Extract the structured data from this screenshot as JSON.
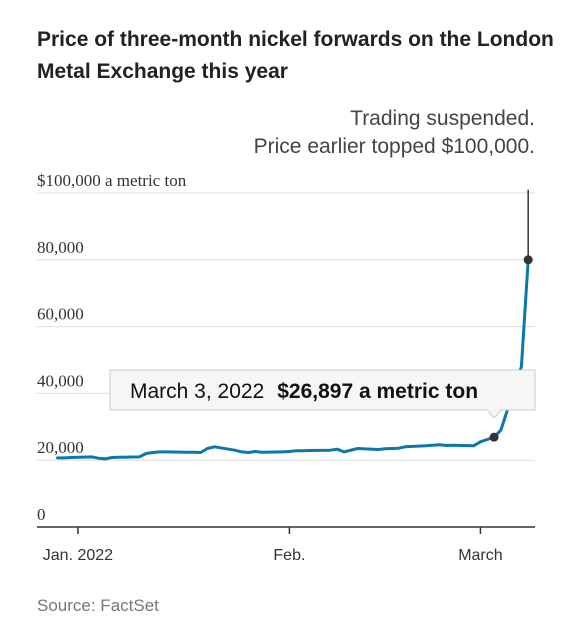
{
  "chart_data": {
    "type": "line",
    "title": "Price of three-month nickel forwards on the London Metal Exchange this year",
    "source": "Source: FactSet",
    "y_ticks": [
      {
        "value": 0,
        "label": "0"
      },
      {
        "value": 20000,
        "label": "20,000"
      },
      {
        "value": 40000,
        "label": "40,000"
      },
      {
        "value": 60000,
        "label": "60,000"
      },
      {
        "value": 80000,
        "label": "80,000"
      },
      {
        "value": 100000,
        "label": "$100,000 a metric ton"
      }
    ],
    "ylim": [
      0,
      100000
    ],
    "xlim": [
      "2021-12-26",
      "2022-03-09"
    ],
    "x_ticks": [
      {
        "value": "2022-01-01",
        "label": "Jan. 2022"
      },
      {
        "value": "2022-02-01",
        "label": "Feb."
      },
      {
        "value": "2022-03-01",
        "label": "March"
      }
    ],
    "grid": true,
    "series": [
      {
        "color": "#0b77ad",
        "points": [
          [
            "2021-12-29",
            20700
          ],
          [
            "2021-12-30",
            20700
          ],
          [
            "2021-12-31",
            20800
          ],
          [
            "2022-01-03",
            21000
          ],
          [
            "2022-01-04",
            20600
          ],
          [
            "2022-01-05",
            20400
          ],
          [
            "2022-01-06",
            20800
          ],
          [
            "2022-01-07",
            20900
          ],
          [
            "2022-01-10",
            21000
          ],
          [
            "2022-01-11",
            22000
          ],
          [
            "2022-01-12",
            22300
          ],
          [
            "2022-01-13",
            22500
          ],
          [
            "2022-01-14",
            22500
          ],
          [
            "2022-01-17",
            22400
          ],
          [
            "2022-01-18",
            22400
          ],
          [
            "2022-01-19",
            22300
          ],
          [
            "2022-01-20",
            23500
          ],
          [
            "2022-01-21",
            24000
          ],
          [
            "2022-01-24",
            23000
          ],
          [
            "2022-01-25",
            22500
          ],
          [
            "2022-01-26",
            22300
          ],
          [
            "2022-01-27",
            22600
          ],
          [
            "2022-01-28",
            22400
          ],
          [
            "2022-01-31",
            22500
          ],
          [
            "2022-02-01",
            22600
          ],
          [
            "2022-02-02",
            22800
          ],
          [
            "2022-02-03",
            22800
          ],
          [
            "2022-02-04",
            22900
          ],
          [
            "2022-02-07",
            23000
          ],
          [
            "2022-02-08",
            23300
          ],
          [
            "2022-02-09",
            22500
          ],
          [
            "2022-02-10",
            23000
          ],
          [
            "2022-02-11",
            23500
          ],
          [
            "2022-02-14",
            23200
          ],
          [
            "2022-02-15",
            23400
          ],
          [
            "2022-02-16",
            23500
          ],
          [
            "2022-02-17",
            23600
          ],
          [
            "2022-02-18",
            24000
          ],
          [
            "2022-02-21",
            24300
          ],
          [
            "2022-02-22",
            24500
          ],
          [
            "2022-02-23",
            24600
          ],
          [
            "2022-02-24",
            24400
          ],
          [
            "2022-02-25",
            24500
          ],
          [
            "2022-02-28",
            24300
          ],
          [
            "2022-03-01",
            25500
          ],
          [
            "2022-03-02",
            26200
          ],
          [
            "2022-03-03",
            26897
          ],
          [
            "2022-03-04",
            29000
          ],
          [
            "2022-03-07",
            48000
          ],
          [
            "2022-03-08",
            80000
          ]
        ]
      }
    ],
    "markers": [
      {
        "x": "2022-03-03",
        "y": 26897
      },
      {
        "x": "2022-03-08",
        "y": 80000
      }
    ],
    "spike": {
      "x": "2022-03-08",
      "from": 80000,
      "to": 101000
    },
    "annotations": {
      "top_line1": "Trading suspended.",
      "top_line2": "Price earlier topped $100,000.",
      "tooltip_date": "March 3, 2022",
      "tooltip_value": "$26,897 a metric ton"
    },
    "colors": {
      "line": "#0b77ad",
      "grid": "#dddddd",
      "axis": "#333333",
      "marker": "#333333"
    }
  }
}
